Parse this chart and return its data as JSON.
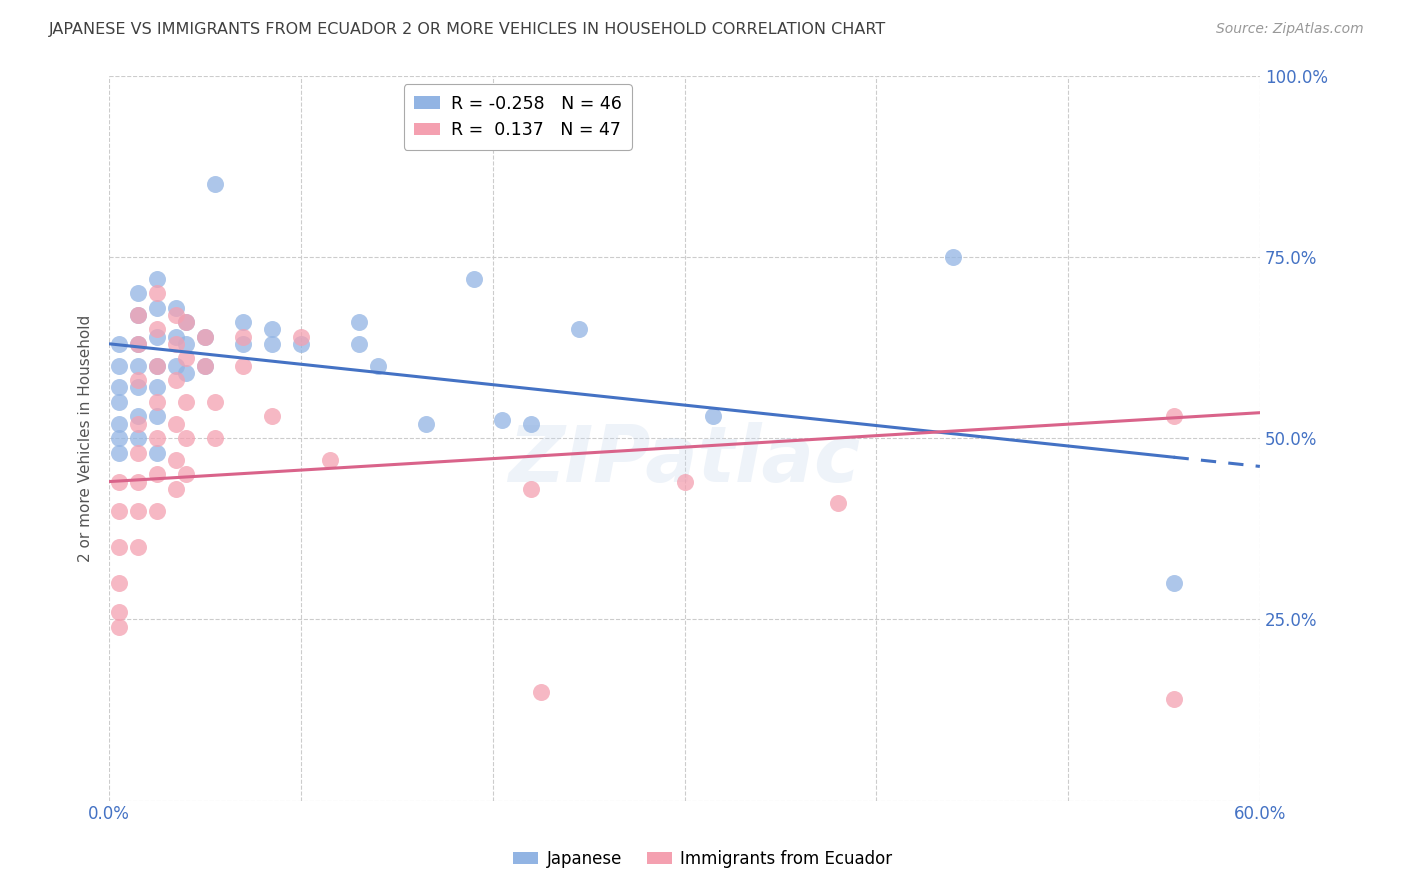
{
  "title": "JAPANESE VS IMMIGRANTS FROM ECUADOR 2 OR MORE VEHICLES IN HOUSEHOLD CORRELATION CHART",
  "source": "Source: ZipAtlas.com",
  "ylabel": "2 or more Vehicles in Household",
  "xlim": [
    0.0,
    0.6
  ],
  "ylim": [
    0.0,
    1.0
  ],
  "xticks": [
    0.0,
    0.1,
    0.2,
    0.3,
    0.4,
    0.5,
    0.6
  ],
  "xticklabels": [
    "0.0%",
    "",
    "",
    "",
    "",
    "",
    "60.0%"
  ],
  "yticks": [
    0.0,
    0.25,
    0.5,
    0.75,
    1.0
  ],
  "yticklabels": [
    "",
    "25.0%",
    "50.0%",
    "75.0%",
    "100.0%"
  ],
  "legend_label1_name": "Japanese",
  "legend_label2_name": "Immigrants from Ecuador",
  "blue_color": "#92B4E3",
  "pink_color": "#F4A0B0",
  "blue_line_color": "#4472C4",
  "pink_line_color": "#D9638A",
  "background_color": "#FFFFFF",
  "grid_color": "#CCCCCC",
  "title_color": "#404040",
  "axis_color": "#4472C4",
  "watermark": "ZIPatlас",
  "blue_R": -0.258,
  "pink_R": 0.137,
  "blue_N": 46,
  "pink_N": 47,
  "blue_scatter": [
    [
      0.005,
      0.63
    ],
    [
      0.005,
      0.6
    ],
    [
      0.005,
      0.57
    ],
    [
      0.005,
      0.55
    ],
    [
      0.005,
      0.52
    ],
    [
      0.005,
      0.5
    ],
    [
      0.005,
      0.48
    ],
    [
      0.015,
      0.7
    ],
    [
      0.015,
      0.67
    ],
    [
      0.015,
      0.63
    ],
    [
      0.015,
      0.6
    ],
    [
      0.015,
      0.57
    ],
    [
      0.015,
      0.53
    ],
    [
      0.015,
      0.5
    ],
    [
      0.025,
      0.72
    ],
    [
      0.025,
      0.68
    ],
    [
      0.025,
      0.64
    ],
    [
      0.025,
      0.6
    ],
    [
      0.025,
      0.57
    ],
    [
      0.025,
      0.53
    ],
    [
      0.025,
      0.48
    ],
    [
      0.035,
      0.68
    ],
    [
      0.035,
      0.64
    ],
    [
      0.035,
      0.6
    ],
    [
      0.04,
      0.66
    ],
    [
      0.04,
      0.63
    ],
    [
      0.04,
      0.59
    ],
    [
      0.05,
      0.64
    ],
    [
      0.05,
      0.6
    ],
    [
      0.055,
      0.85
    ],
    [
      0.07,
      0.66
    ],
    [
      0.07,
      0.63
    ],
    [
      0.085,
      0.65
    ],
    [
      0.085,
      0.63
    ],
    [
      0.1,
      0.63
    ],
    [
      0.13,
      0.66
    ],
    [
      0.13,
      0.63
    ],
    [
      0.14,
      0.6
    ],
    [
      0.165,
      0.52
    ],
    [
      0.19,
      0.72
    ],
    [
      0.205,
      0.525
    ],
    [
      0.22,
      0.52
    ],
    [
      0.245,
      0.65
    ],
    [
      0.315,
      0.53
    ],
    [
      0.44,
      0.75
    ],
    [
      0.555,
      0.3
    ]
  ],
  "pink_scatter": [
    [
      0.005,
      0.44
    ],
    [
      0.005,
      0.4
    ],
    [
      0.005,
      0.35
    ],
    [
      0.005,
      0.3
    ],
    [
      0.005,
      0.26
    ],
    [
      0.005,
      0.24
    ],
    [
      0.015,
      0.67
    ],
    [
      0.015,
      0.63
    ],
    [
      0.015,
      0.58
    ],
    [
      0.015,
      0.52
    ],
    [
      0.015,
      0.48
    ],
    [
      0.015,
      0.44
    ],
    [
      0.015,
      0.4
    ],
    [
      0.015,
      0.35
    ],
    [
      0.025,
      0.7
    ],
    [
      0.025,
      0.65
    ],
    [
      0.025,
      0.6
    ],
    [
      0.025,
      0.55
    ],
    [
      0.025,
      0.5
    ],
    [
      0.025,
      0.45
    ],
    [
      0.025,
      0.4
    ],
    [
      0.035,
      0.67
    ],
    [
      0.035,
      0.63
    ],
    [
      0.035,
      0.58
    ],
    [
      0.035,
      0.52
    ],
    [
      0.035,
      0.47
    ],
    [
      0.035,
      0.43
    ],
    [
      0.04,
      0.66
    ],
    [
      0.04,
      0.61
    ],
    [
      0.04,
      0.55
    ],
    [
      0.04,
      0.5
    ],
    [
      0.04,
      0.45
    ],
    [
      0.05,
      0.64
    ],
    [
      0.05,
      0.6
    ],
    [
      0.055,
      0.55
    ],
    [
      0.055,
      0.5
    ],
    [
      0.07,
      0.64
    ],
    [
      0.07,
      0.6
    ],
    [
      0.085,
      0.53
    ],
    [
      0.1,
      0.64
    ],
    [
      0.115,
      0.47
    ],
    [
      0.22,
      0.43
    ],
    [
      0.225,
      0.15
    ],
    [
      0.3,
      0.44
    ],
    [
      0.38,
      0.41
    ],
    [
      0.555,
      0.53
    ],
    [
      0.555,
      0.14
    ]
  ]
}
